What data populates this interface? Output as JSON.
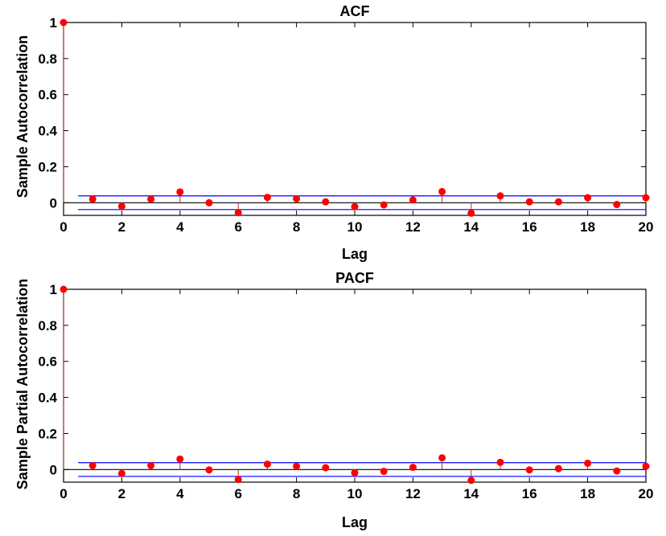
{
  "chart_data": [
    {
      "type": "stem",
      "title": "ACF",
      "xlabel": "Lag",
      "ylabel": "Sample Autocorrelation",
      "xlim": [
        0,
        20
      ],
      "ylim": [
        -0.07,
        1.0
      ],
      "xticks": [
        0,
        2,
        4,
        6,
        8,
        10,
        12,
        14,
        16,
        18,
        20
      ],
      "yticks": [
        0,
        0.2,
        0.4,
        0.6,
        0.8,
        1
      ],
      "ytick_labels": [
        "0",
        "0.2",
        "0.4",
        "0.6",
        "0.8",
        "1"
      ],
      "x": [
        0,
        1,
        2,
        3,
        4,
        5,
        6,
        7,
        8,
        9,
        10,
        11,
        12,
        13,
        14,
        15,
        16,
        17,
        18,
        19,
        20
      ],
      "values": [
        1.0,
        0.02,
        -0.02,
        0.02,
        0.06,
        0.0,
        -0.055,
        0.03,
        0.022,
        0.005,
        -0.022,
        -0.012,
        0.015,
        0.062,
        -0.058,
        0.038,
        0.005,
        0.005,
        0.028,
        -0.01,
        0.028
      ],
      "confidence_bounds": [
        0.038,
        -0.038
      ],
      "marker_color": "#ff0000",
      "bound_color": "#0000ff",
      "zero_line_color": "#000000",
      "stem_color": "#b03030"
    },
    {
      "type": "stem",
      "title": "PACF",
      "xlabel": "Lag",
      "ylabel": "Sample Partial Autocorrelation",
      "xlim": [
        0,
        20
      ],
      "ylim": [
        -0.07,
        1.0
      ],
      "xticks": [
        0,
        2,
        4,
        6,
        8,
        10,
        12,
        14,
        16,
        18,
        20
      ],
      "yticks": [
        0,
        0.2,
        0.4,
        0.6,
        0.8,
        1
      ],
      "ytick_labels": [
        "0",
        "0.2",
        "0.4",
        "0.6",
        "0.8",
        "1"
      ],
      "x": [
        0,
        1,
        2,
        3,
        4,
        5,
        6,
        7,
        8,
        9,
        10,
        11,
        12,
        13,
        14,
        15,
        16,
        17,
        18,
        19,
        20
      ],
      "values": [
        1.0,
        0.022,
        -0.022,
        0.022,
        0.058,
        -0.002,
        -0.055,
        0.03,
        0.018,
        0.01,
        -0.018,
        -0.01,
        0.012,
        0.065,
        -0.06,
        0.04,
        -0.002,
        0.005,
        0.035,
        -0.008,
        0.018
      ],
      "confidence_bounds": [
        0.038,
        -0.038
      ],
      "marker_color": "#ff0000",
      "bound_color": "#0000ff",
      "zero_line_color": "#000000",
      "stem_color": "#b03030"
    }
  ]
}
